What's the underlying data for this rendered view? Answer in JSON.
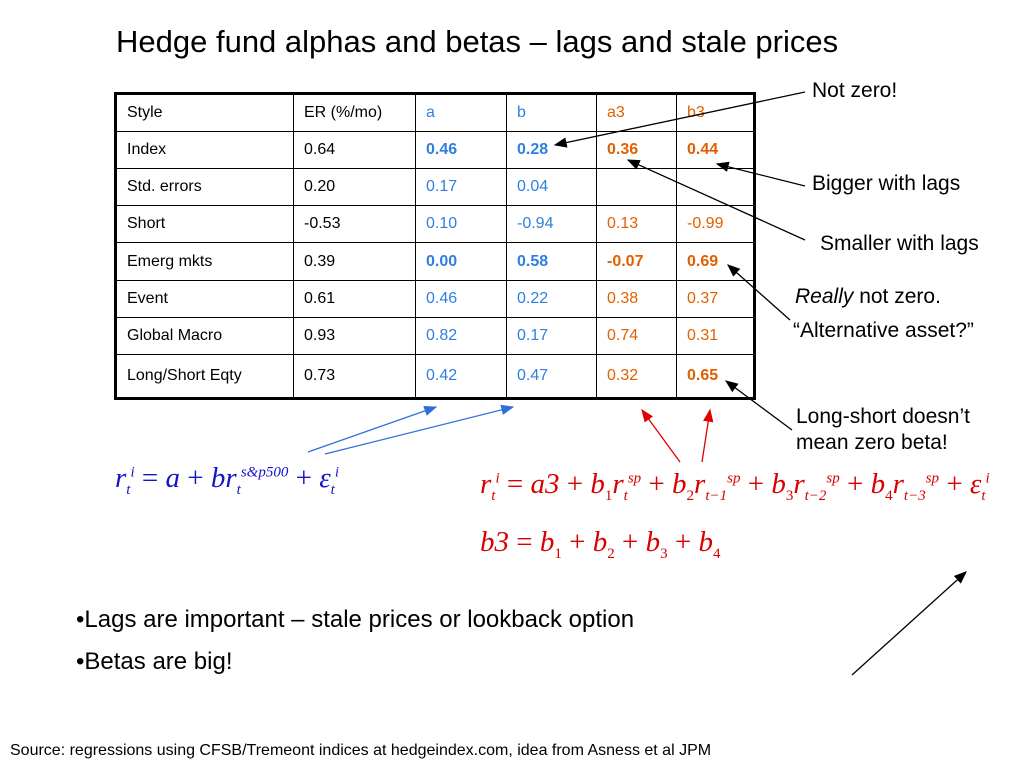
{
  "title": "Hedge fund alphas and betas – lags and stale prices",
  "table": {
    "headers": [
      "Style",
      "ER (%/mo)",
      "a",
      "b",
      "a3",
      "b3"
    ],
    "rows": [
      [
        "Index",
        "0.64",
        "0.46",
        "0.28",
        "0.36",
        "0.44"
      ],
      [
        "Std. errors",
        "0.20",
        "0.17",
        "0.04",
        "",
        ""
      ],
      [
        "Short",
        "-0.53",
        "0.10",
        "-0.94",
        "0.13",
        "-0.99"
      ],
      [
        "Emerg mkts",
        "0.39",
        "0.00",
        "0.58",
        "-0.07",
        "0.69"
      ],
      [
        "Event",
        "0.61",
        "0.46",
        "0.22",
        "0.38",
        "0.37"
      ],
      [
        "Global Macro",
        "0.93",
        "0.82",
        "0.17",
        "0.74",
        "0.31"
      ],
      [
        "Long/Short Eqty",
        "0.73",
        "0.42",
        "0.47",
        "0.32",
        "0.65"
      ]
    ]
  },
  "annotations": {
    "not_zero": "Not zero!",
    "bigger": "Bigger with lags",
    "smaller": "Smaller with lags",
    "really_italic": "Really",
    "really_rest": " not zero.",
    "alternative": "“Alternative asset?”",
    "longshort_1": "Long-short doesn’t",
    "longshort_2": "mean zero beta!"
  },
  "equations": {
    "r": "r",
    "t": "t",
    "i": "i",
    "a": "a",
    "br": "br",
    "sp500": "s&p500",
    "eps": "ε",
    "eq": " = ",
    "plus": " + ",
    "a3": "a3",
    "b": "b",
    "sp": "sp",
    "t1": "t−1",
    "t2": "t−2",
    "t3": "t−3",
    "n1": "1",
    "n2": "2",
    "n3": "3",
    "n4": "4",
    "b3": "b3"
  },
  "bullets": [
    "•Lags are important – stale prices or lookback option",
    "•Betas are big!"
  ],
  "source": "Source: regressions using CFSB/Tremeont indices at hedgeindex.com, idea from Asness et al JPM",
  "colors": {
    "blue": "#2f7fe0",
    "orange": "#e25f00",
    "eq_blue": "#1414c8",
    "eq_red": "#d80000"
  }
}
